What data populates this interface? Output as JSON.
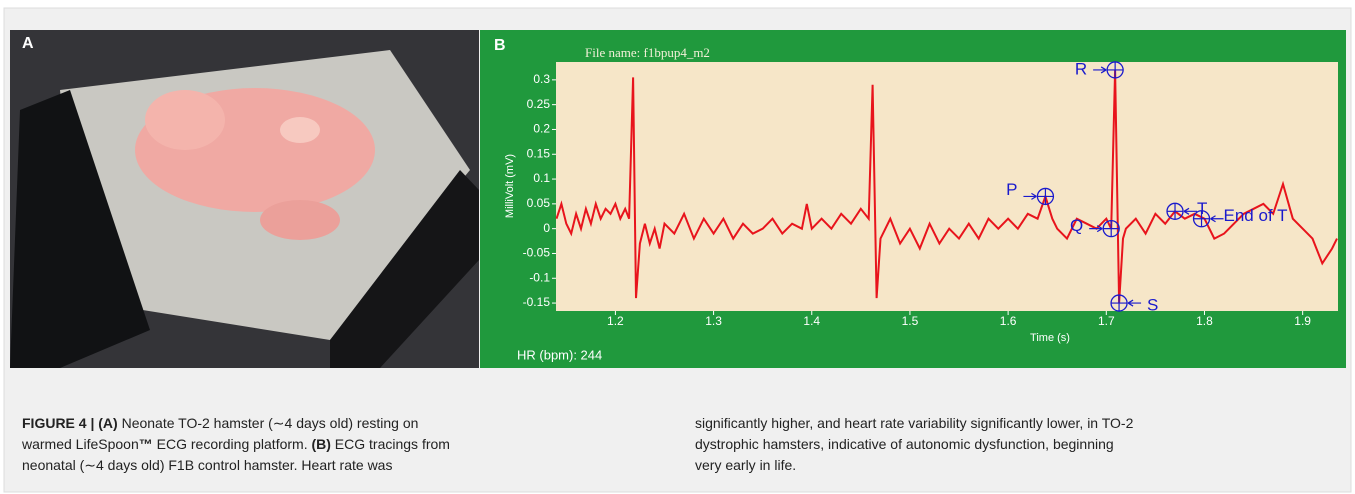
{
  "panels": [
    {
      "label": "A"
    },
    {
      "label": "B"
    }
  ],
  "chart_data": {
    "type": "line",
    "title": "File name: f1bpup4_m2",
    "annotation": "HR (bpm): 244",
    "xlabel": "Time (s)",
    "ylabel": "MilliVolt (mV)",
    "color": "#e8141c",
    "marker_color": "#1a1acc",
    "xlim": [
      1.1395,
      1.936
    ],
    "ylim": [
      -0.166,
      0.336
    ],
    "xticks": [
      1.2,
      1.3,
      1.4,
      1.5,
      1.6,
      1.7,
      1.8,
      1.9
    ],
    "yticks": [
      0.3,
      0.25,
      0.2,
      0.15,
      0.1,
      0.05,
      0,
      -0.05,
      -0.1,
      -0.15
    ],
    "x": [
      1.14,
      1.145,
      1.15,
      1.155,
      1.16,
      1.165,
      1.17,
      1.175,
      1.18,
      1.185,
      1.19,
      1.195,
      1.2,
      1.205,
      1.21,
      1.214,
      1.218,
      1.221,
      1.225,
      1.23,
      1.235,
      1.24,
      1.245,
      1.25,
      1.26,
      1.27,
      1.28,
      1.29,
      1.3,
      1.31,
      1.32,
      1.33,
      1.34,
      1.35,
      1.36,
      1.37,
      1.38,
      1.39,
      1.395,
      1.4,
      1.41,
      1.42,
      1.43,
      1.44,
      1.45,
      1.458,
      1.462,
      1.466,
      1.47,
      1.48,
      1.49,
      1.5,
      1.51,
      1.52,
      1.53,
      1.54,
      1.55,
      1.56,
      1.57,
      1.58,
      1.59,
      1.6,
      1.61,
      1.62,
      1.63,
      1.638,
      1.645,
      1.65,
      1.66,
      1.67,
      1.68,
      1.69,
      1.7,
      1.705,
      1.709,
      1.713,
      1.717,
      1.72,
      1.73,
      1.74,
      1.75,
      1.76,
      1.77,
      1.78,
      1.79,
      1.8,
      1.81,
      1.82,
      1.83,
      1.84,
      1.85,
      1.86,
      1.87,
      1.88,
      1.89,
      1.9,
      1.91,
      1.92,
      1.93,
      1.935
    ],
    "values": [
      0.02,
      0.05,
      0.01,
      -0.01,
      0.03,
      0,
      0.04,
      0.01,
      0.05,
      0.02,
      0.04,
      0.03,
      0.05,
      0.02,
      0.04,
      0.02,
      0.305,
      -0.14,
      -0.03,
      0.01,
      -0.03,
      0,
      -0.04,
      0.01,
      -0.01,
      0.03,
      -0.02,
      0.02,
      -0.01,
      0.02,
      -0.02,
      0.01,
      -0.01,
      0,
      0.02,
      -0.01,
      0.01,
      0,
      0.05,
      0,
      0.02,
      0,
      0.03,
      0.01,
      0.04,
      0.02,
      0.29,
      -0.14,
      -0.02,
      0.02,
      -0.03,
      0,
      -0.04,
      0.01,
      -0.03,
      0,
      -0.02,
      0.01,
      -0.02,
      0.02,
      0,
      0.02,
      0,
      0.03,
      0.02,
      0.065,
      0.02,
      0,
      -0.02,
      0.02,
      0.01,
      0,
      0.02,
      0,
      0.32,
      -0.15,
      -0.02,
      0,
      0.02,
      -0.01,
      0.03,
      0.01,
      0.035,
      0.02,
      0.03,
      0.02,
      -0.02,
      -0.01,
      0.01,
      0.03,
      0.04,
      0.05,
      0.03,
      0.09,
      0.02,
      0,
      -0.02,
      -0.07,
      -0.04,
      -0.02
    ],
    "markers": [
      {
        "label": "P",
        "x": 1.638,
        "y": 0.065
      },
      {
        "label": "Q",
        "x": 1.705,
        "y": 0
      },
      {
        "label": "R",
        "x": 1.709,
        "y": 0.32
      },
      {
        "label": "S",
        "x": 1.713,
        "y": -0.15
      },
      {
        "label": "T",
        "x": 1.77,
        "y": 0.035
      },
      {
        "label": "End of T",
        "x": 1.797,
        "y": 0.02
      }
    ]
  },
  "caption": {
    "columns": [
      [
        [
          {
            "text": "FIGURE 4 | (A)",
            "bold": true
          },
          {
            "text": " Neonate TO-2 hamster (∼4 days old) resting on",
            "bold": false
          }
        ],
        [
          {
            "text": "warmed LifeSpoon",
            "bold": false
          },
          {
            "text": "™",
            "bold": true
          },
          {
            "text": " ECG recording platform. ",
            "bold": false
          },
          {
            "text": "(B)",
            "bold": true
          },
          {
            "text": " ECG tracings from",
            "bold": false
          }
        ],
        [
          {
            "text": "neonatal (∼4 days old) F1B control hamster. Heart rate was",
            "bold": false
          }
        ]
      ],
      [
        [
          {
            "text": "significantly higher, and heart rate variability significantly lower, in TO-2",
            "bold": false
          }
        ],
        [
          {
            "text": "dystrophic hamsters, indicative of autonomic dysfunction, beginning",
            "bold": false
          }
        ],
        [
          {
            "text": "very early in life.",
            "bold": false
          }
        ]
      ]
    ]
  }
}
